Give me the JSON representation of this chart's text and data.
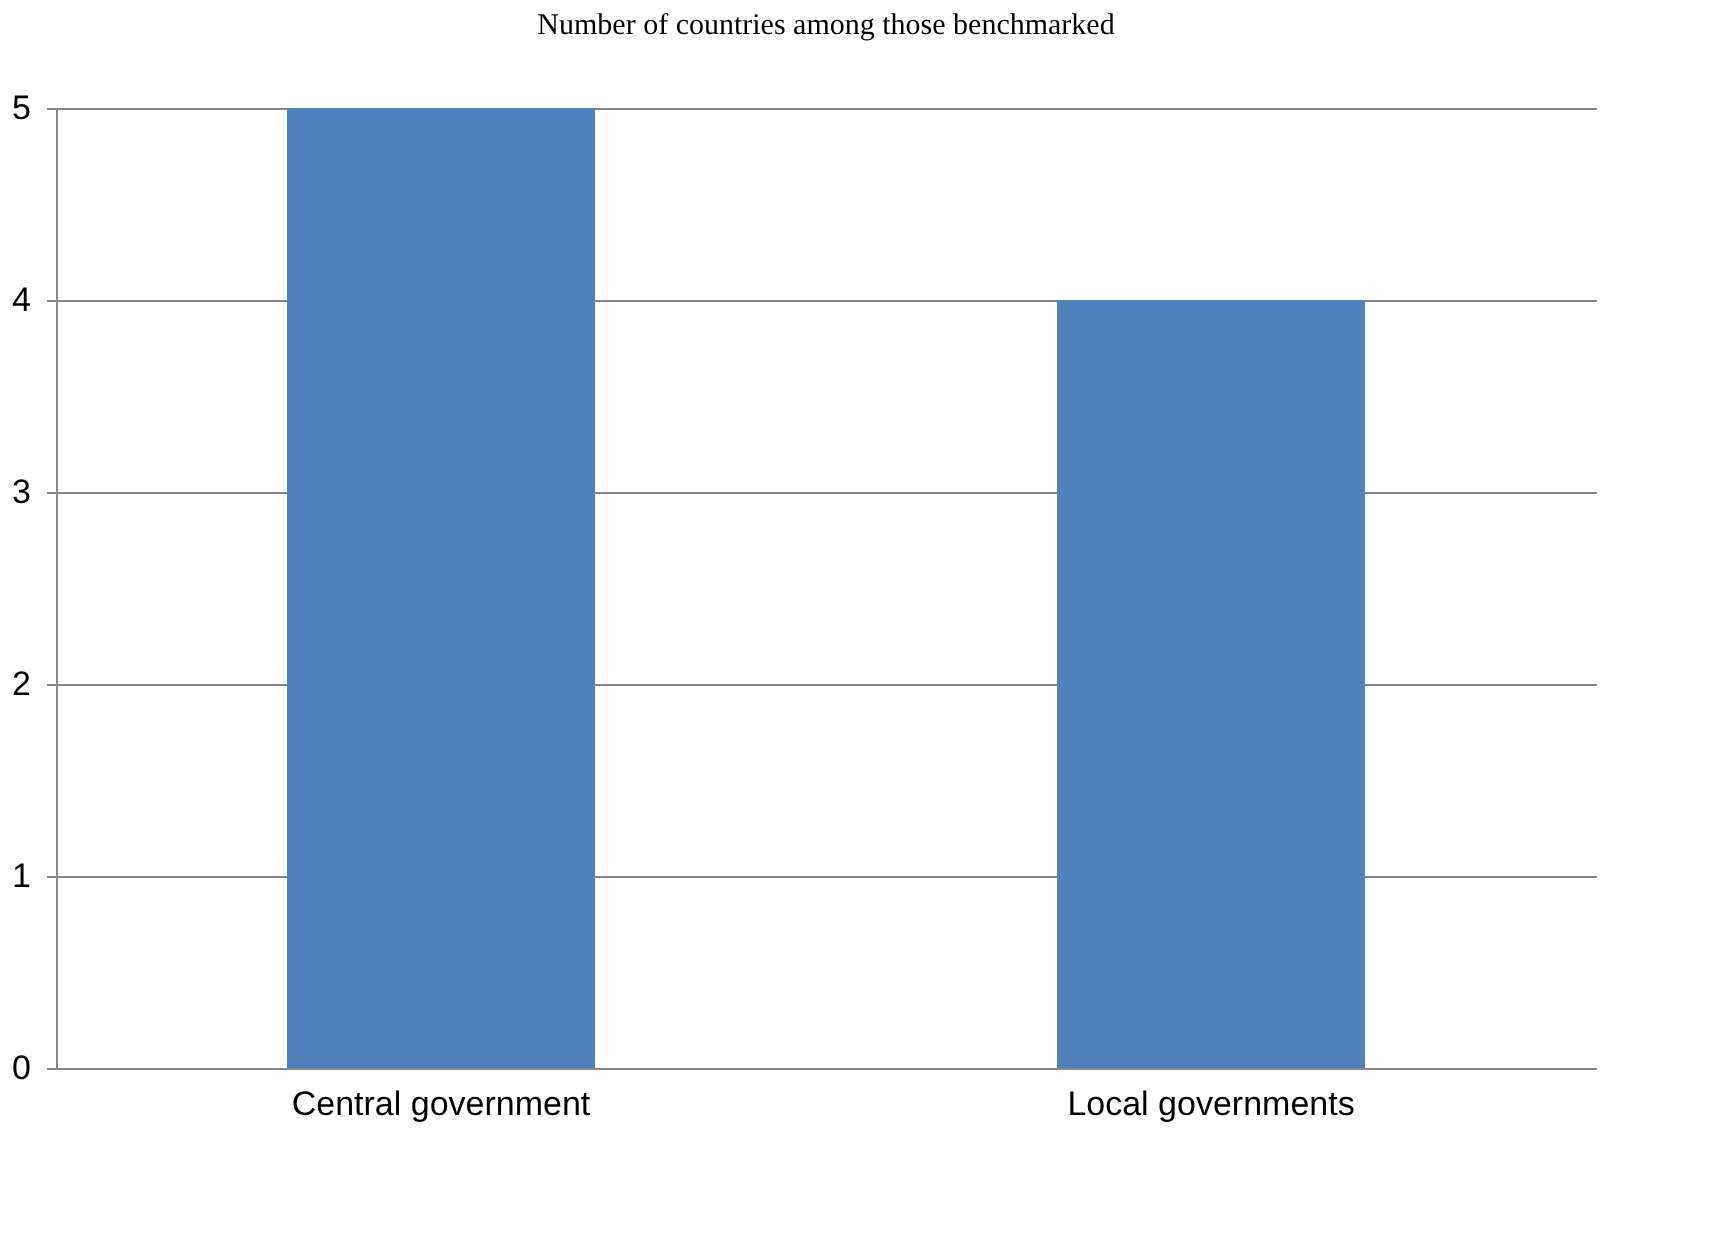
{
  "chart_data": {
    "type": "bar",
    "title": "Number of countries among those benchmarked",
    "categories": [
      "Central government",
      "Local governments"
    ],
    "values": [
      5,
      4
    ],
    "color": "#4f81bd",
    "ylim": [
      0,
      5
    ],
    "yticks": [
      0,
      1,
      2,
      3,
      4,
      5
    ],
    "grid": "y"
  }
}
